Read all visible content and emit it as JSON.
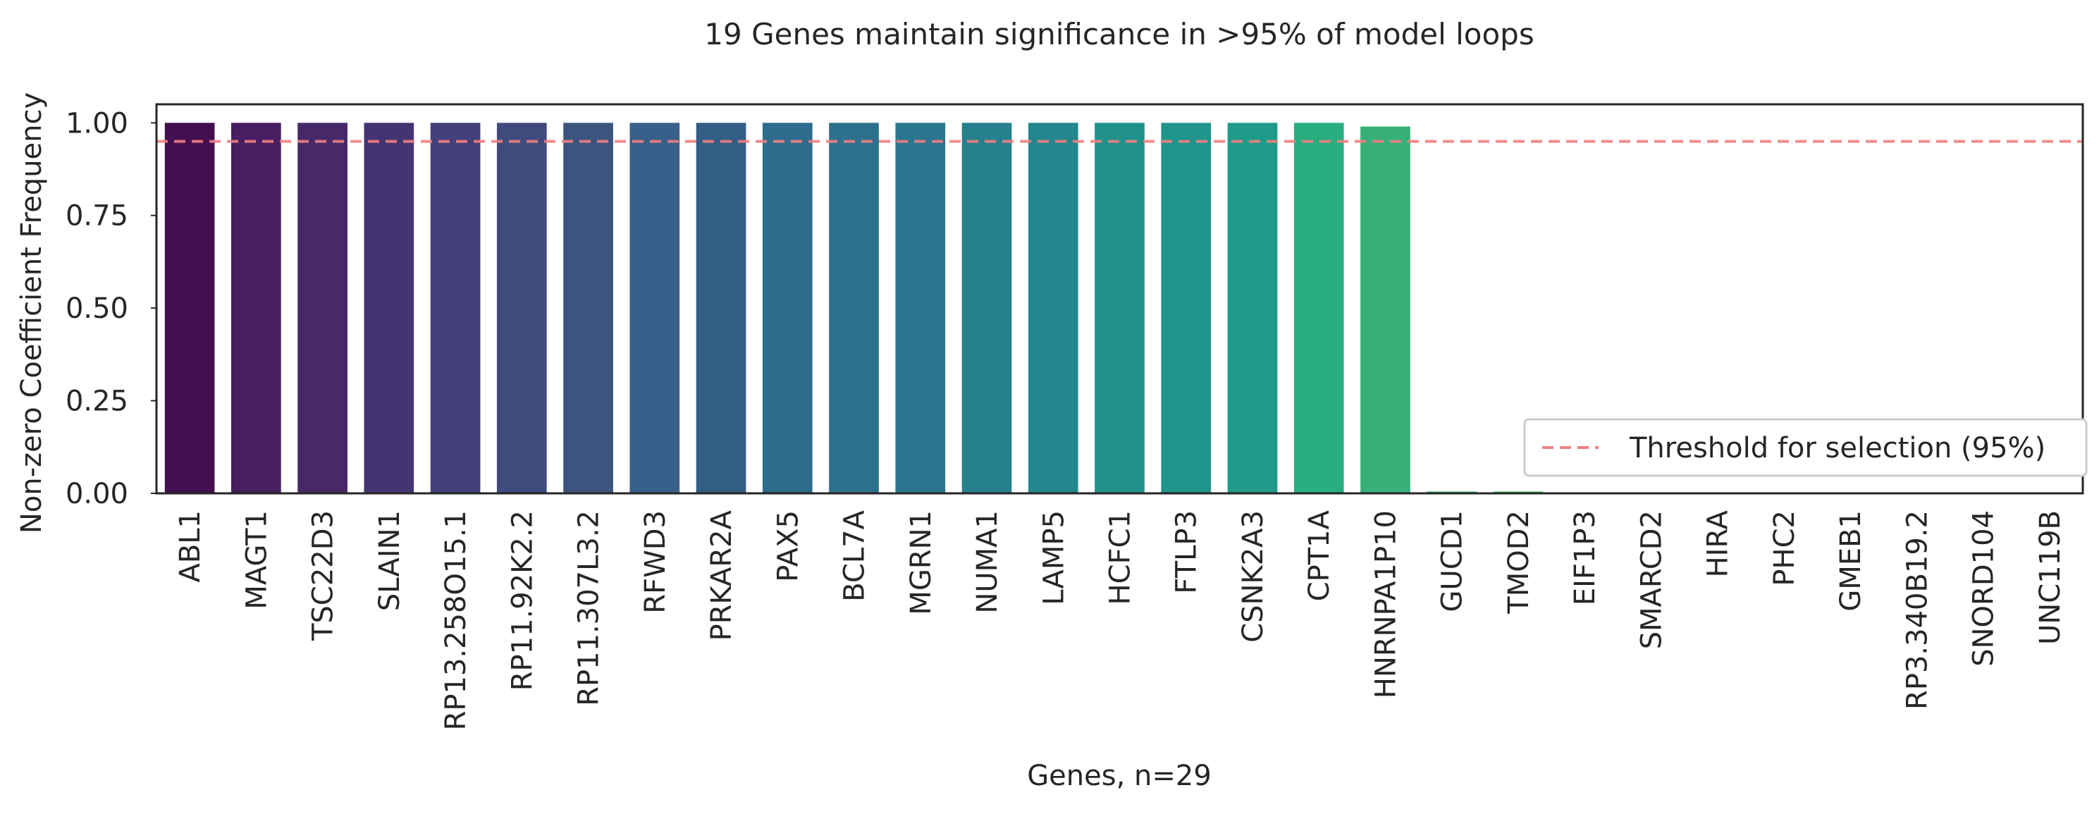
{
  "chart_data": {
    "type": "bar",
    "title": "19 Genes maintain significance in >95% of model loops",
    "xlabel": "Genes, n=29",
    "ylabel": "Non-zero Coefficient Frequency",
    "categories": [
      "ABL1",
      "MAGT1",
      "TSC22D3",
      "SLAIN1",
      "RP13.258O15.1",
      "RP11.92K2.2",
      "RP11.307L3.2",
      "RFWD3",
      "PRKAR2A",
      "PAX5",
      "BCL7A",
      "MGRN1",
      "NUMA1",
      "LAMP5",
      "HCFC1",
      "FTLP3",
      "CSNK2A3",
      "CPT1A",
      "HNRNPA1P10",
      "GUCD1",
      "TMOD2",
      "EIF1P3",
      "SMARCD2",
      "HIRA",
      "PHC2",
      "GMEB1",
      "RP3.340B19.2",
      "SNORD104",
      "UNC119B"
    ],
    "values": [
      1.0,
      1.0,
      1.0,
      1.0,
      1.0,
      1.0,
      1.0,
      1.0,
      1.0,
      1.0,
      1.0,
      1.0,
      1.0,
      1.0,
      1.0,
      1.0,
      1.0,
      1.0,
      0.99,
      0.005,
      0.005,
      0.0,
      0.0,
      0.0,
      0.0,
      0.0,
      0.0,
      0.0,
      0.0
    ],
    "ylim": [
      0,
      1.05
    ],
    "yticks": [
      "0.00",
      "0.25",
      "0.50",
      "0.75",
      "1.00"
    ],
    "threshold": {
      "value": 0.95,
      "label": "Threshold for selection (95%)",
      "color": "#f08080"
    },
    "palette": "viridis",
    "bar_colors": [
      "#440f4f",
      "#471e61",
      "#47296a",
      "#453473",
      "#433f7a",
      "#3f4b7d",
      "#3b557f",
      "#38608b",
      "#335e85",
      "#2e6b8c",
      "#2d718e",
      "#2a768e",
      "#27808e",
      "#24868e",
      "#21918c",
      "#20958b",
      "#1f9c89",
      "#28ae80",
      "#36b078",
      "#3aba76",
      "#4bc26c",
      "#5ec962",
      "#73d056",
      "#89d548",
      "#a0da39",
      "#b8de29",
      "#d0e11c",
      "#e7e419",
      "#fde725"
    ],
    "grid": false,
    "legend": "bottom-right"
  }
}
